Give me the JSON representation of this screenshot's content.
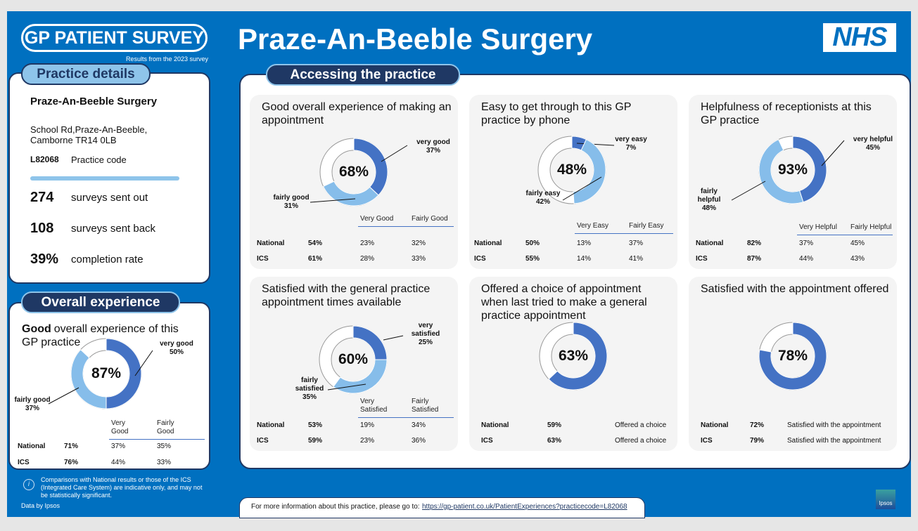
{
  "header": {
    "logo": "GP PATIENT SURVEY",
    "subtitle": "Results from the 2023 survey",
    "title": "Praze-An-Beeble Surgery",
    "nhs_logo": "NHS"
  },
  "practice_details": {
    "heading": "Practice details",
    "name": "Praze-An-Beeble Surgery",
    "address": [
      "School Rd,Praze-An-Beeble,",
      "Camborne TR14 0LB"
    ],
    "code": "L82068",
    "code_label": "Practice code",
    "stats": [
      {
        "value": "274",
        "label": "surveys sent out"
      },
      {
        "value": "108",
        "label": "surveys sent back"
      },
      {
        "value": "39%",
        "label": "completion rate"
      }
    ]
  },
  "overall_experience": {
    "heading": "Overall experience",
    "title_bold": "Good",
    "title_rest": "overall experience of this GP practice",
    "total_label": "87%",
    "segments": [
      {
        "label": "very good",
        "value": 50,
        "value_label": "50%"
      },
      {
        "label": "fairly good",
        "value": 37,
        "value_label": "37%"
      }
    ],
    "table": {
      "columns": [
        "Very Good",
        "Fairly Good"
      ],
      "rows": [
        {
          "name": "National",
          "overall": "71%",
          "values": [
            "37%",
            "35%"
          ]
        },
        {
          "name": "ICS",
          "overall": "76%",
          "values": [
            "44%",
            "33%"
          ]
        }
      ]
    }
  },
  "accessing": {
    "heading": "Accessing the practice",
    "cards": [
      {
        "title": "Good overall experience of making an appointment",
        "total_label": "68%",
        "segments": [
          {
            "label": "very good",
            "value": 37,
            "value_label": "37%"
          },
          {
            "label": "fairly good",
            "value": 31,
            "value_label": "31%"
          }
        ],
        "table": {
          "columns": [
            "Very Good",
            "Fairly Good"
          ],
          "rows": [
            {
              "name": "National",
              "overall": "54%",
              "values": [
                "23%",
                "32%"
              ]
            },
            {
              "name": "ICS",
              "overall": "61%",
              "values": [
                "28%",
                "33%"
              ]
            }
          ]
        }
      },
      {
        "title": "Easy to get through to this GP practice by phone",
        "total_label": "48%",
        "segments": [
          {
            "label": "very easy",
            "value": 7,
            "value_label": "7%"
          },
          {
            "label": "fairly easy",
            "value": 42,
            "value_label": "42%"
          }
        ],
        "table": {
          "columns": [
            "Very Easy",
            "Fairly Easy"
          ],
          "rows": [
            {
              "name": "National",
              "overall": "50%",
              "values": [
                "13%",
                "37%"
              ]
            },
            {
              "name": "ICS",
              "overall": "55%",
              "values": [
                "14%",
                "41%"
              ]
            }
          ]
        }
      },
      {
        "title": "Helpfulness of receptionists at this GP practice",
        "total_label": "93%",
        "segments": [
          {
            "label": "very helpful",
            "value": 45,
            "value_label": "45%"
          },
          {
            "label": "fairly helpful",
            "value": 48,
            "value_label": "48%"
          }
        ],
        "table": {
          "columns": [
            "Very Helpful",
            "Fairly Helpful"
          ],
          "rows": [
            {
              "name": "National",
              "overall": "82%",
              "values": [
                "37%",
                "45%"
              ]
            },
            {
              "name": "ICS",
              "overall": "87%",
              "values": [
                "44%",
                "43%"
              ]
            }
          ]
        }
      },
      {
        "title": "Satisfied with the general practice appointment times available",
        "total_label": "60%",
        "segments": [
          {
            "label": "very satisfied",
            "value": 25,
            "value_label": "25%"
          },
          {
            "label": "fairly satisfied",
            "value": 35,
            "value_label": "35%"
          }
        ],
        "table": {
          "columns": [
            "Very Satisfied",
            "Fairly Satisfied"
          ],
          "rows": [
            {
              "name": "National",
              "overall": "53%",
              "values": [
                "19%",
                "34%"
              ]
            },
            {
              "name": "ICS",
              "overall": "59%",
              "values": [
                "23%",
                "36%"
              ]
            }
          ]
        }
      },
      {
        "title": "Offered a choice of appointment when last tried to make a general practice appointment",
        "total_label": "63%",
        "segments": [
          {
            "value": 63
          }
        ],
        "table": {
          "rows": [
            {
              "name": "National",
              "overall": "59%",
              "note": "Offered a choice"
            },
            {
              "name": "ICS",
              "overall": "63%",
              "note": "Offered a choice"
            }
          ]
        }
      },
      {
        "title": "Satisfied with the appointment offered",
        "total_label": "78%",
        "segments": [
          {
            "value": 78
          }
        ],
        "table": {
          "rows": [
            {
              "name": "National",
              "overall": "72%",
              "note": "Satisfied with the appointment"
            },
            {
              "name": "ICS",
              "overall": "79%",
              "note": "Satisfied with the appointment"
            }
          ]
        }
      }
    ]
  },
  "footer": {
    "note": "Comparisons with National results or those of the ICS (Integrated Care System) are indicative only, and may not be statistically significant.",
    "credit": "Data by Ipsos",
    "link_text": "For more information about this practice, please go to:",
    "url": "https://gp-patient.co.uk/PatientExperiences?practicecode=L82068",
    "ipsos": "Ipsos"
  }
}
